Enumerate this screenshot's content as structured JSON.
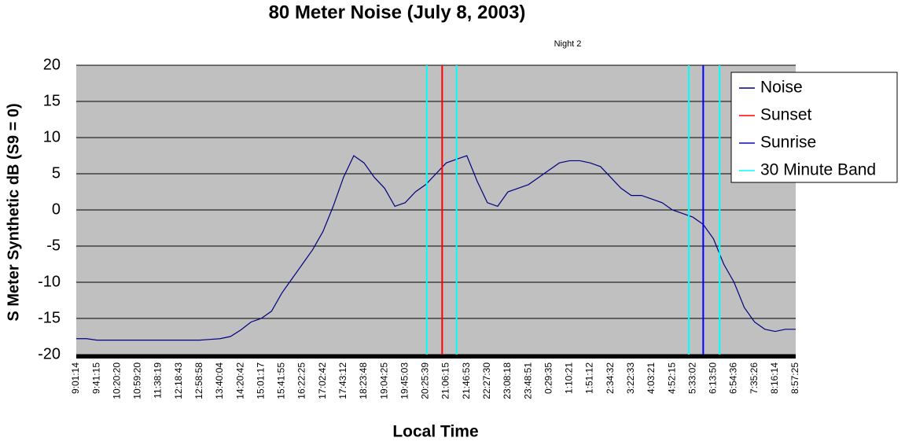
{
  "chart_data": {
    "type": "line",
    "title": "80 Meter Noise (July 8, 2003)",
    "subtitle": "Night 2",
    "xlabel": "Local Time",
    "ylabel": "S Meter Synthetic dB (S9 = 0)",
    "categories": [
      "9:01:14",
      null,
      "9:41:15",
      null,
      "10:20:20",
      null,
      "10:59:20",
      null,
      "11:38:19",
      null,
      "12:18:43",
      null,
      "12:58:58",
      null,
      "13:40:04",
      null,
      "14:20:42",
      null,
      "15:01:17",
      null,
      "15:41:55",
      null,
      "16:22:25",
      null,
      "17:02:42",
      null,
      "17:43:12",
      null,
      "18:23:48",
      null,
      "19:04:25",
      null,
      "19:45:03",
      null,
      "20:25:39",
      null,
      "21:06:15",
      null,
      "21:46:53",
      null,
      "22:27:30",
      null,
      "23:08:18",
      null,
      "23:48:51",
      null,
      "0:29:35",
      null,
      "1:10:21",
      null,
      "1:51:12",
      null,
      "2:34:32",
      null,
      "3:22:33",
      null,
      "4:03:21",
      null,
      "4:52:15",
      null,
      "5:33:02",
      null,
      "6:13:50",
      null,
      "6:54:36",
      null,
      "7:35:26",
      null,
      "8:16:14",
      null,
      "8:57:25"
    ],
    "series": [
      {
        "name": "Noise",
        "color": "#000080",
        "values": [
          -17.8,
          -17.8,
          -18,
          -18,
          -18,
          -18,
          -18,
          -18,
          -18,
          -18,
          -18,
          -18,
          -18,
          -17.9,
          -17.8,
          -17.5,
          -16.6,
          -15.5,
          -15,
          -14,
          -11.5,
          -9.5,
          -7.5,
          -5.5,
          -3,
          0.5,
          4.5,
          7.5,
          6.5,
          4.5,
          3,
          0.5,
          1,
          2.5,
          3.5,
          5,
          6.5,
          7,
          7.5,
          4,
          1,
          0.5,
          2.5,
          3,
          3.5,
          4.5,
          5.5,
          6.5,
          6.8,
          6.8,
          6.5,
          6,
          4.5,
          3,
          2,
          2,
          1.5,
          1,
          0,
          -0.5,
          -1,
          -2,
          -4,
          -7.5,
          -10,
          -13.5,
          -15.5,
          -16.5,
          -16.8,
          -16.5,
          -16.5
        ]
      },
      {
        "name": "Sunset",
        "color": "#ff0000",
        "x": [
          35.6
        ]
      },
      {
        "name": "Sunrise",
        "color": "#0000ff",
        "x": [
          61.0
        ]
      },
      {
        "name": "30 Minute Band",
        "color": "#00ffff",
        "x": [
          34.1,
          37.0,
          59.6,
          62.6
        ]
      }
    ],
    "ylim": [
      -20,
      20
    ],
    "yticks": [
      -20,
      -15,
      -10,
      -5,
      0,
      5,
      10,
      15,
      20
    ],
    "grid": true,
    "legend": "right"
  }
}
